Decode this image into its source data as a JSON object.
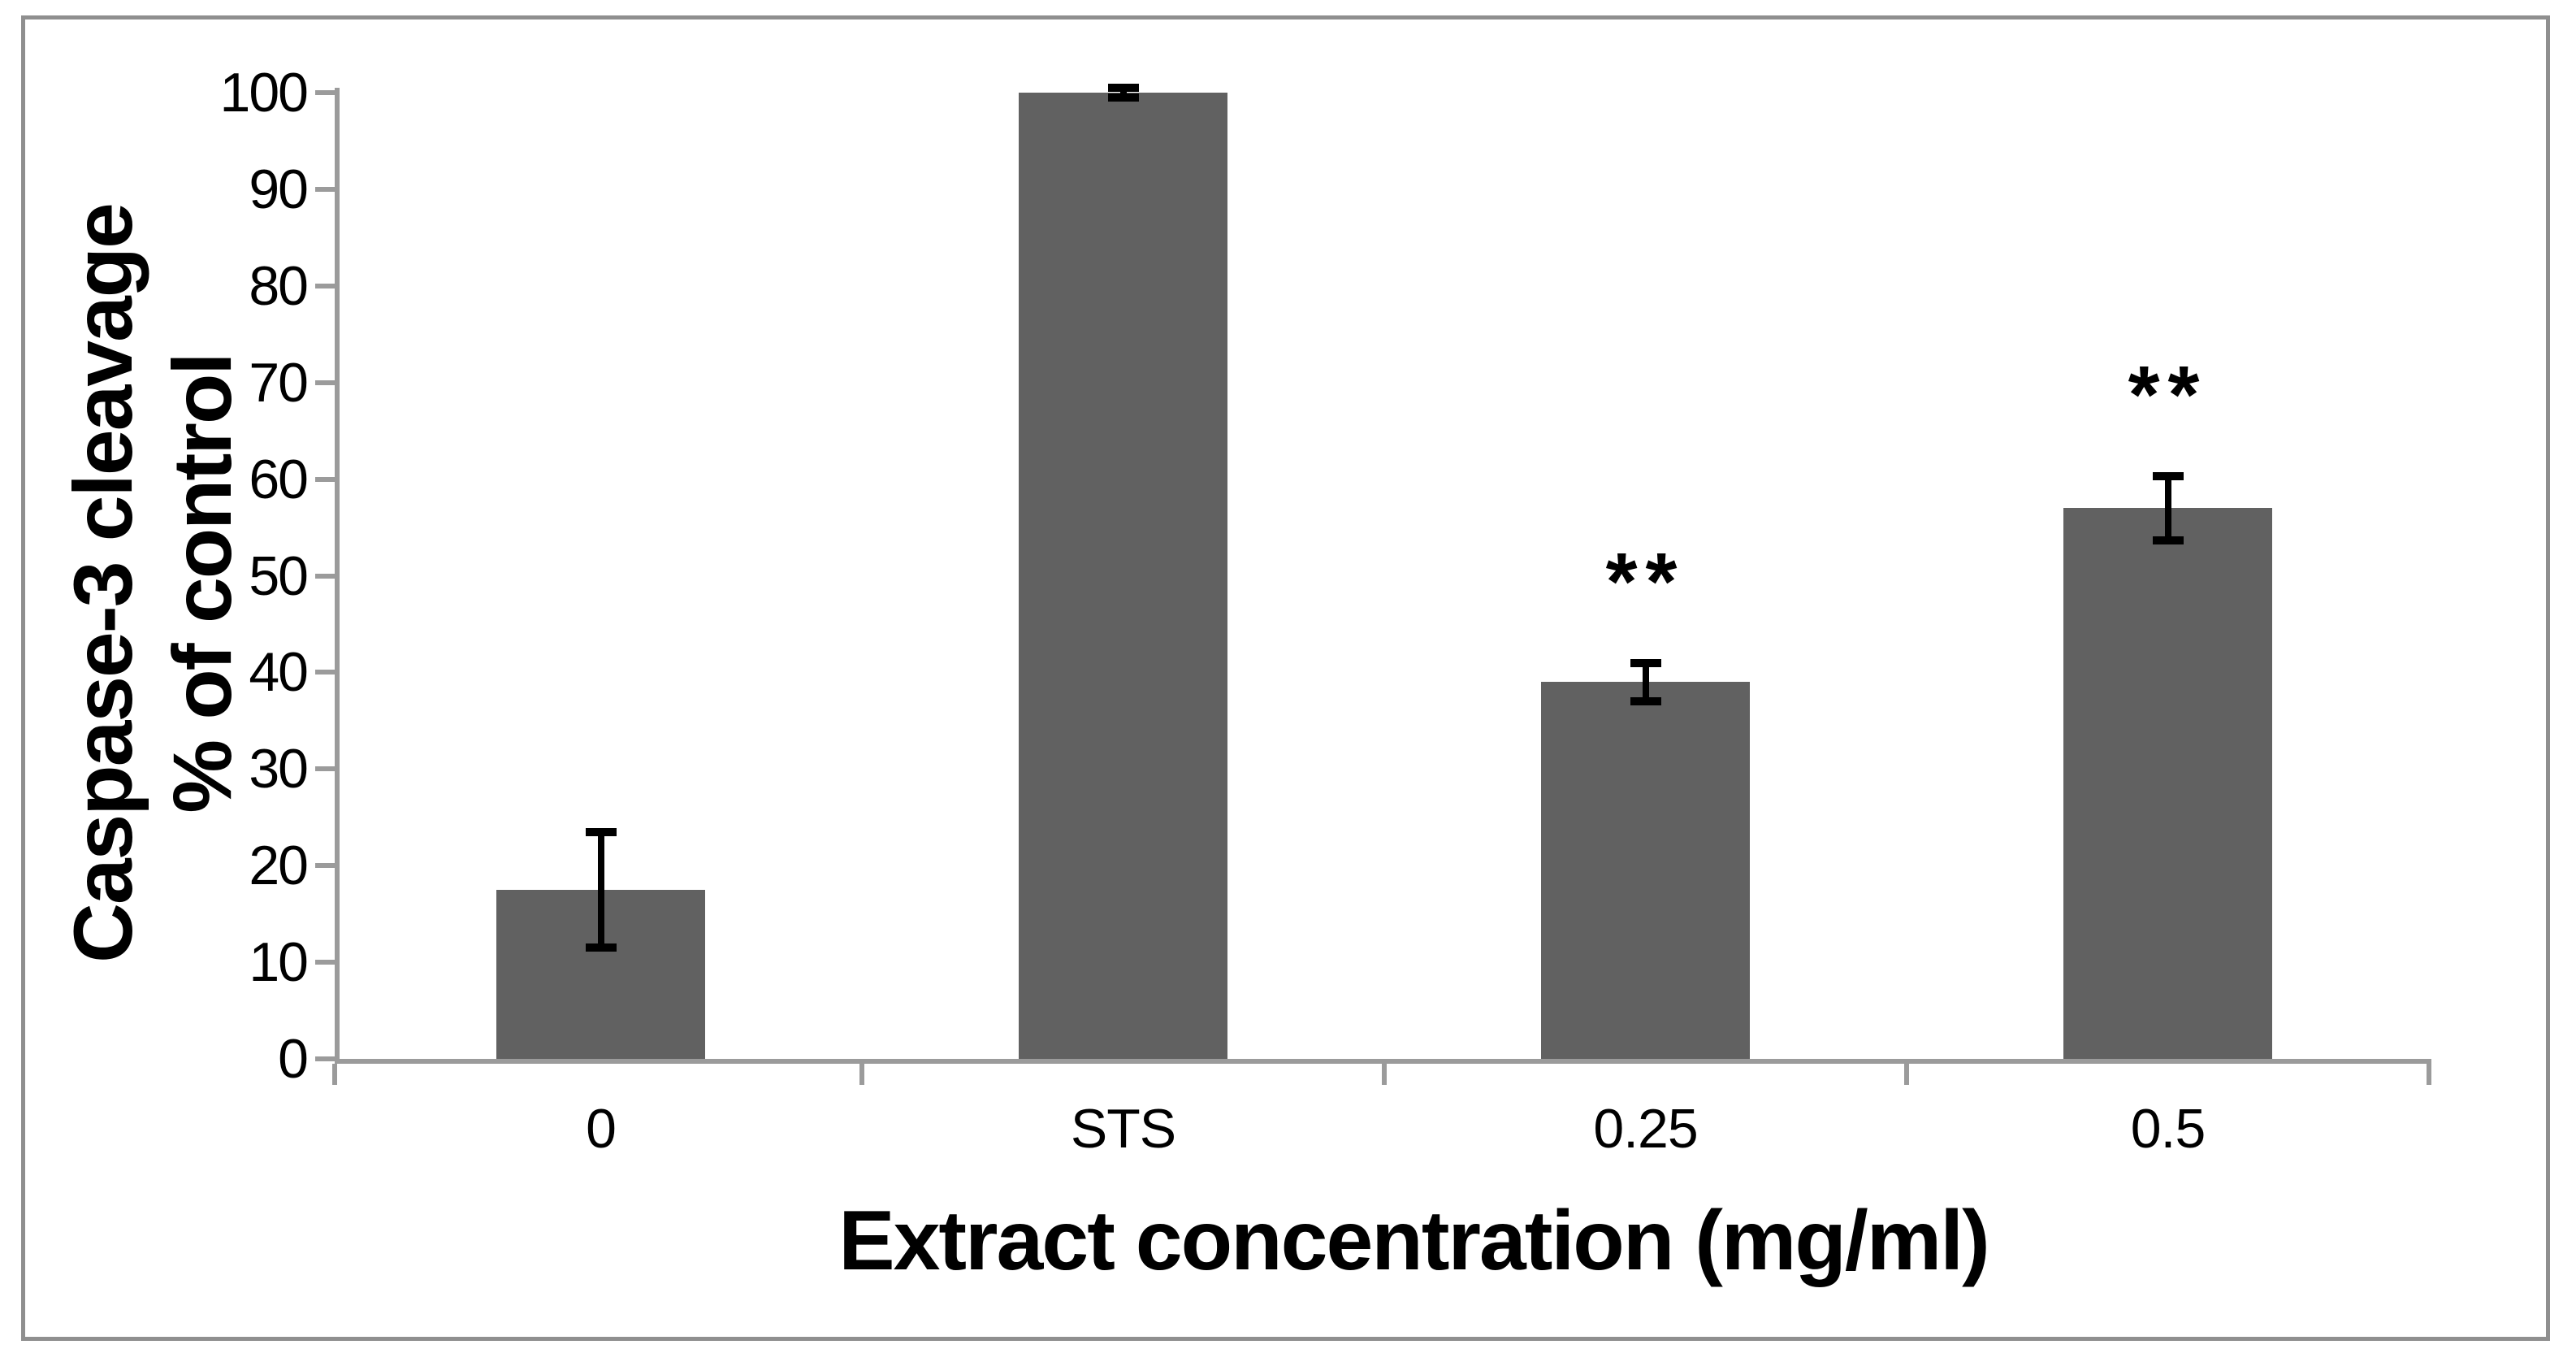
{
  "chart_data": {
    "type": "bar",
    "title": "",
    "categories": [
      "0",
      "STS",
      "0.25",
      "0.5"
    ],
    "values": [
      17.5,
      100,
      39,
      57
    ],
    "error_bars": [
      6,
      0.5,
      2,
      3.3
    ],
    "annotations": [
      "",
      "",
      "**",
      "**"
    ],
    "xlabel": "Extract concentration (mg/ml)",
    "ylabel": "Caspase-3 cleavage % of control",
    "ylabel_lines": [
      "Caspase-3 cleavage",
      "% of control"
    ],
    "ylim": [
      0,
      100
    ],
    "ytick_step": 10,
    "ytick_labels": [
      "0",
      "10",
      "20",
      "30",
      "40",
      "50",
      "60",
      "70",
      "80",
      "90",
      "100"
    ],
    "grid": false,
    "legend": "none",
    "colors": {
      "bar_fill": "#616161",
      "axis": "#9b9b9b",
      "frame_border": "#8f8f8f",
      "error_bar": "#000000",
      "text": "#000000",
      "background": "#ffffff"
    }
  }
}
